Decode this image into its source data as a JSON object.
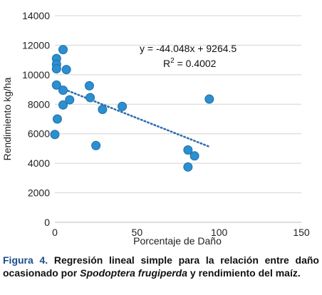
{
  "chart_data": {
    "type": "scatter",
    "title": "",
    "xlabel": "Porcentaje de Daño",
    "ylabel": "Rendimiento kg/ha",
    "xlim": [
      0,
      150
    ],
    "ylim": [
      0,
      14000
    ],
    "xticks": [
      "0",
      "50",
      "100",
      "150"
    ],
    "yticks": [
      "0",
      "2000",
      "4000",
      "6000",
      "8000",
      "10000",
      "12000",
      "14000"
    ],
    "grid": "horizontal",
    "legend": "none",
    "point_color": "#2b8fd0",
    "point_edge_color": "#1f6fa8",
    "trendline_color": "#2f6db3",
    "points": [
      {
        "x": 0,
        "y": 5950
      },
      {
        "x": 1,
        "y": 11100
      },
      {
        "x": 1,
        "y": 10700
      },
      {
        "x": 1,
        "y": 10400
      },
      {
        "x": 1,
        "y": 9300
      },
      {
        "x": 1.5,
        "y": 7000
      },
      {
        "x": 5,
        "y": 11700
      },
      {
        "x": 5,
        "y": 8950
      },
      {
        "x": 5,
        "y": 7950
      },
      {
        "x": 7,
        "y": 10350
      },
      {
        "x": 9,
        "y": 8300
      },
      {
        "x": 21,
        "y": 9250
      },
      {
        "x": 21.5,
        "y": 8450
      },
      {
        "x": 25,
        "y": 5200
      },
      {
        "x": 29,
        "y": 7650
      },
      {
        "x": 41,
        "y": 7850
      },
      {
        "x": 81,
        "y": 4900
      },
      {
        "x": 81,
        "y": 3750
      },
      {
        "x": 85,
        "y": 4500
      },
      {
        "x": 94,
        "y": 8350
      }
    ],
    "trendline": {
      "slope": -44.048,
      "intercept": 9264.5,
      "x_range": [
        0,
        94
      ],
      "equation": "y = -44.048x + 9264.5",
      "r2_prefix": "R",
      "r2_sup": "2",
      "r2_value": " = 0.4002"
    }
  },
  "caption": {
    "label": "Figura 4.",
    "text_before": " Regresión lineal simple para la relación entre daño ocasionado por ",
    "species": "Spodoptera frugiperda",
    "text_after": " y rendimiento del maíz."
  }
}
